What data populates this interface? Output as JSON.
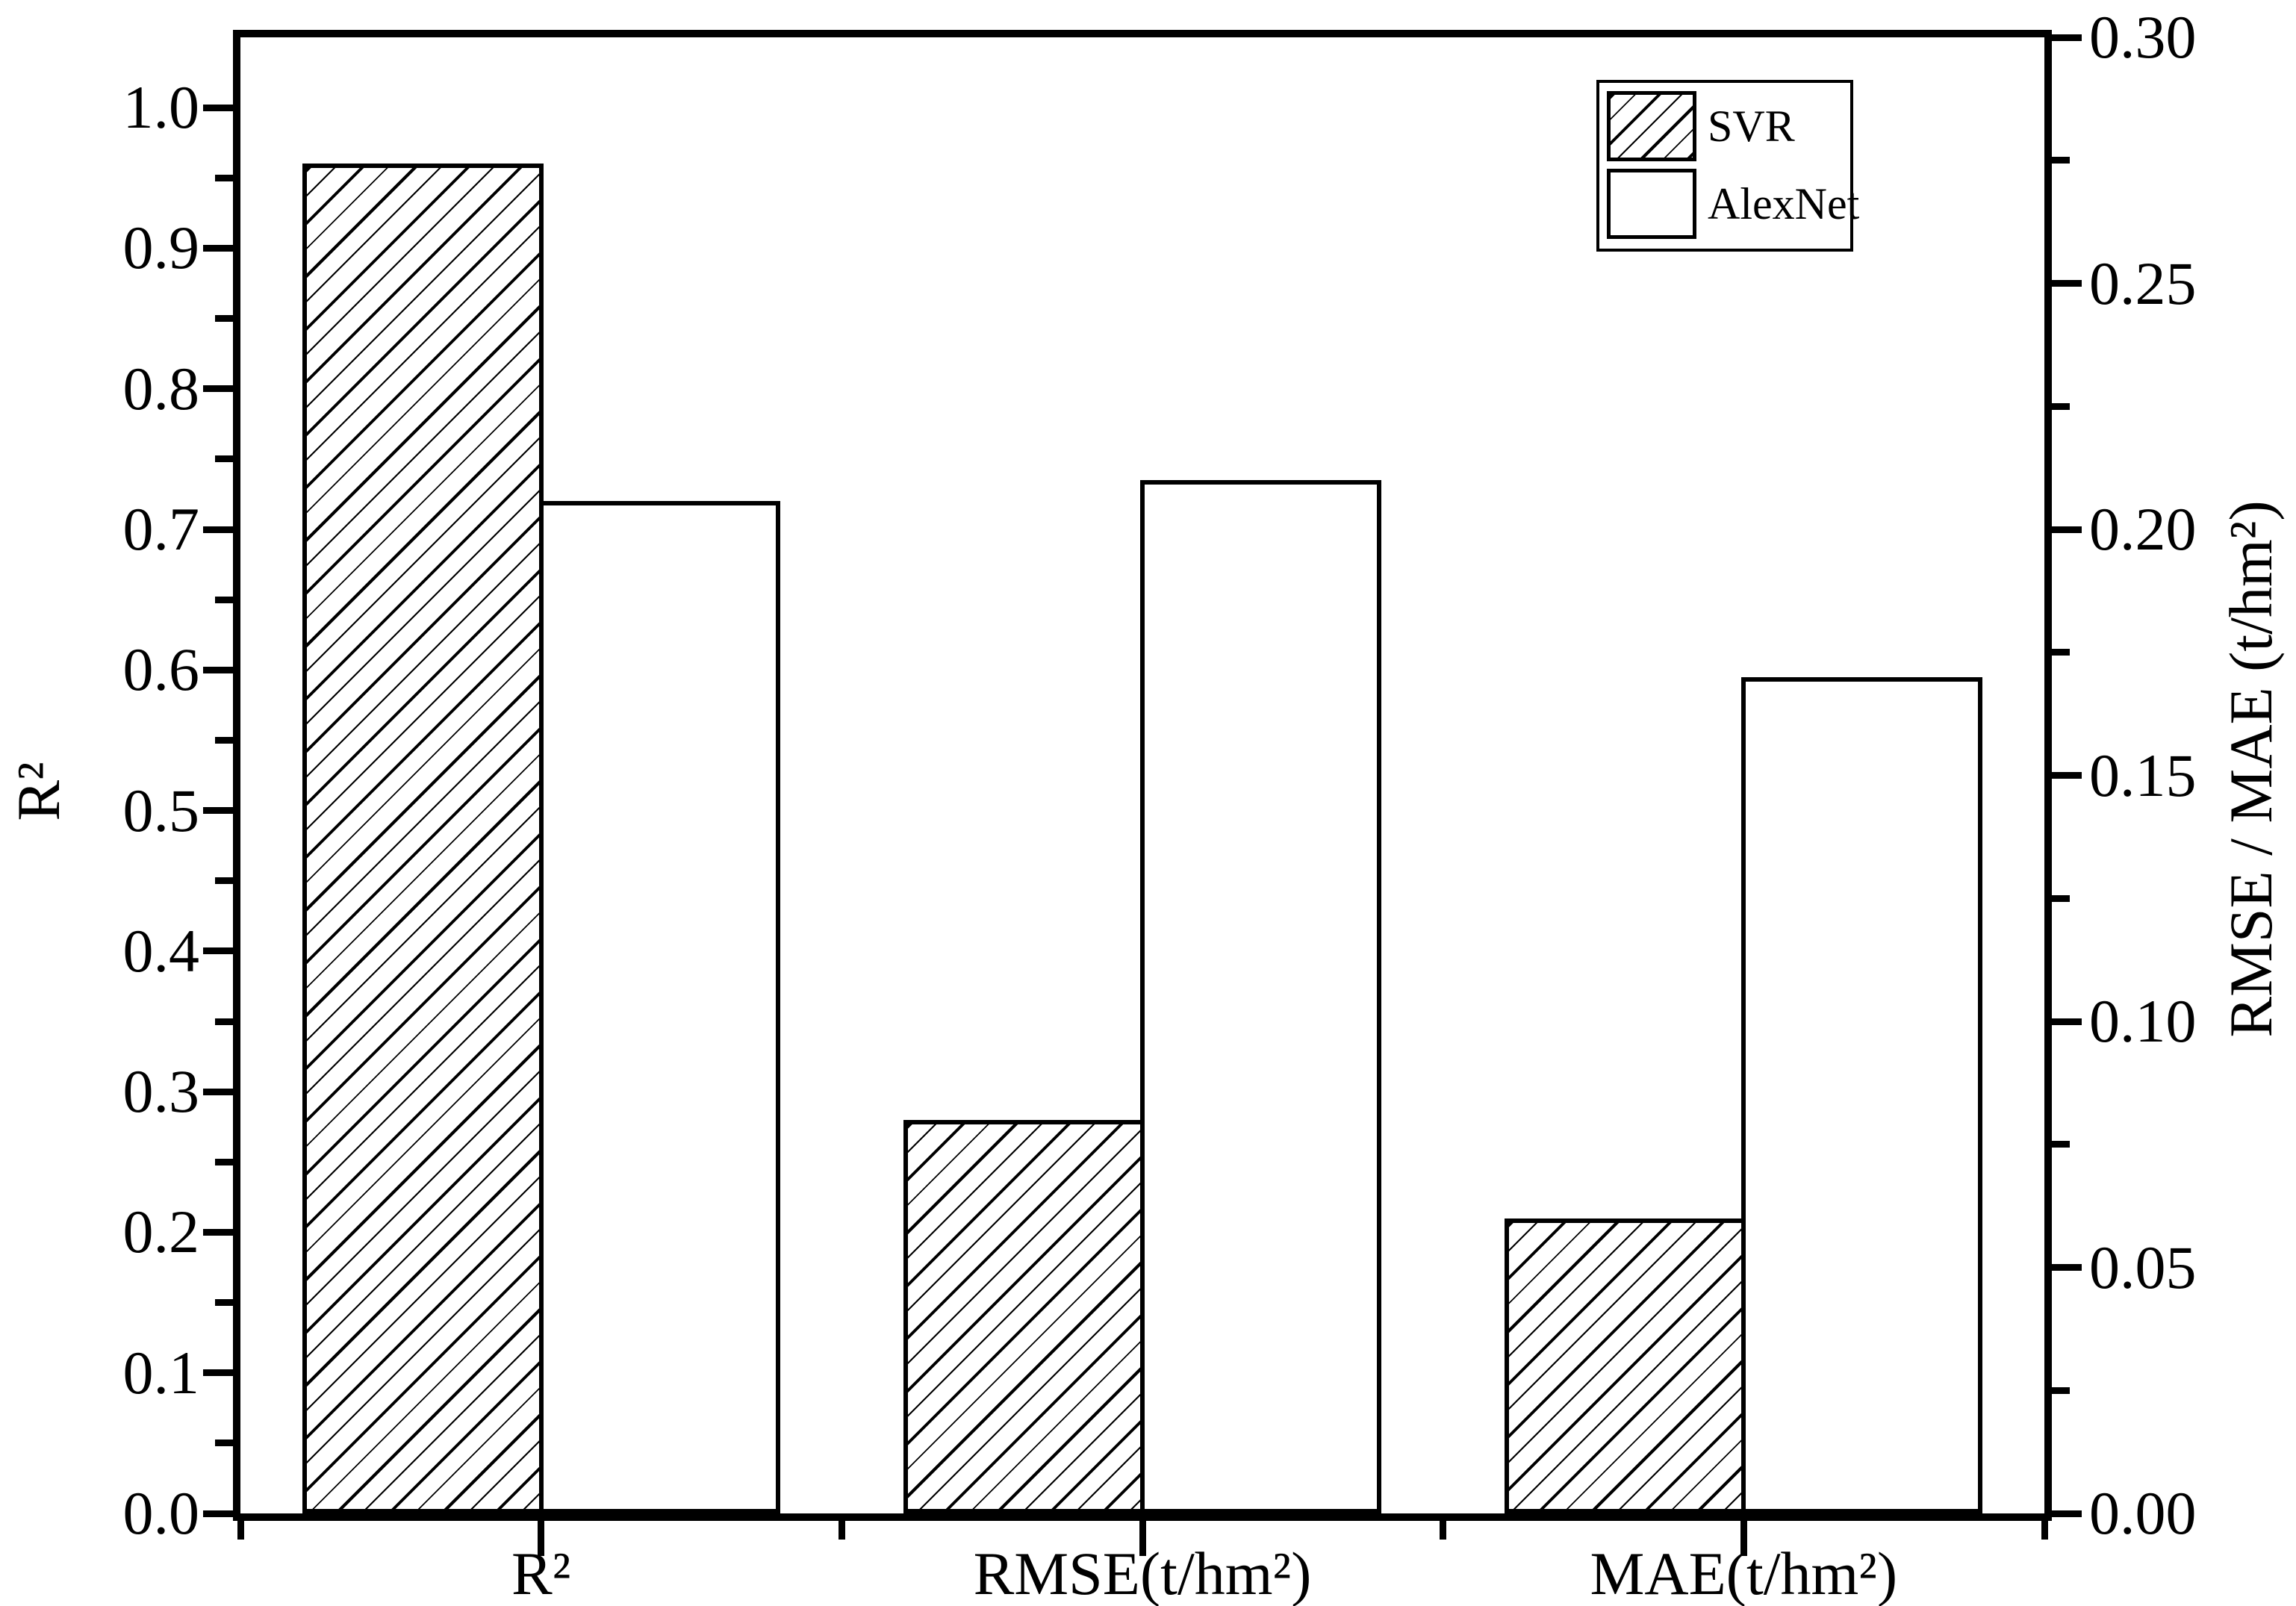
{
  "figure": {
    "background": "#ffffff",
    "ink_color": "#000000"
  },
  "chart_data": {
    "type": "bar",
    "title": "",
    "categories": [
      "R²",
      "RMSE(t/hm²)",
      "MAE(t/hm²)"
    ],
    "category_axis": [
      "left",
      "right",
      "right"
    ],
    "series": [
      {
        "name": "SVR",
        "fill": "hatched",
        "values": [
          0.96,
          0.08,
          0.06
        ]
      },
      {
        "name": "AlexNet",
        "fill": "white",
        "values": [
          0.72,
          0.21,
          0.17
        ]
      }
    ],
    "left_axis": {
      "label": "R²",
      "min": 0,
      "max": 1.05,
      "tick_values": [
        0.0,
        0.1,
        0.2,
        0.3,
        0.4,
        0.5,
        0.6,
        0.7,
        0.8,
        0.9,
        1.0
      ],
      "tick_labels": [
        "0.0",
        "0.1",
        "0.2",
        "0.3",
        "0.4",
        "0.5",
        "0.6",
        "0.7",
        "0.8",
        "0.9",
        "1.0"
      ],
      "minor_tick_step": 0.05
    },
    "right_axis": {
      "label": "RMSE / MAE (t/hm²)",
      "min": 0,
      "max": 0.3,
      "tick_values": [
        0.0,
        0.05,
        0.1,
        0.15,
        0.2,
        0.25,
        0.3
      ],
      "tick_labels": [
        "0.00",
        "0.05",
        "0.10",
        "0.15",
        "0.20",
        "0.25",
        "0.30"
      ],
      "minor_tick_step": 0.025
    },
    "legend": {
      "position": "top-right",
      "entries": [
        "SVR",
        "AlexNet"
      ]
    },
    "grid": false
  }
}
